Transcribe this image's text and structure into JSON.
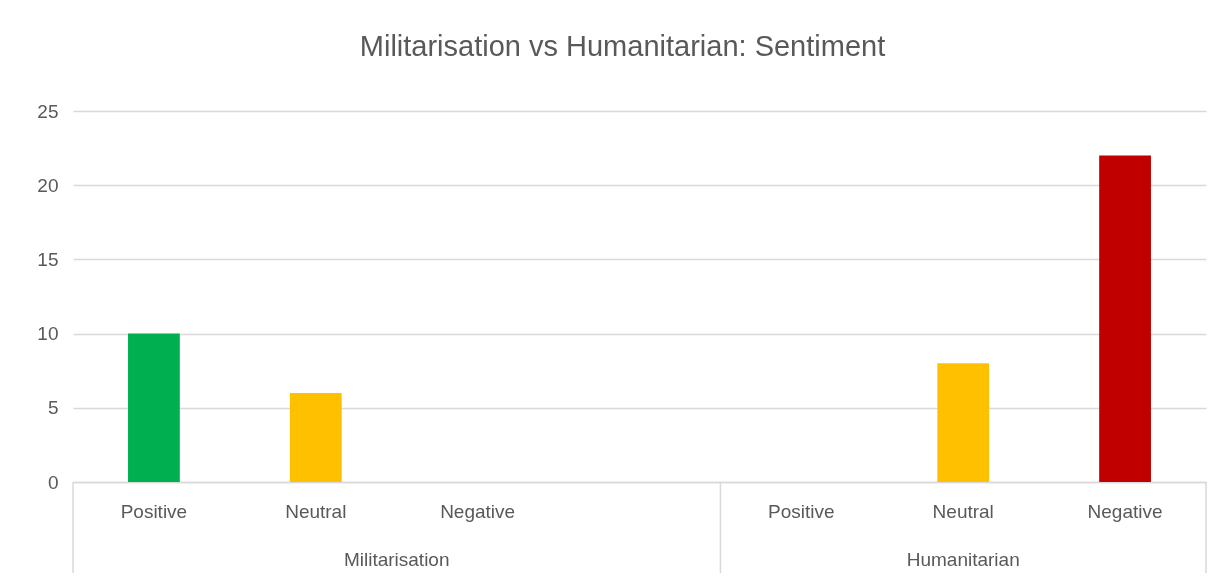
{
  "chart_data": {
    "type": "bar",
    "title": "Militarisation vs Humanitarian:  Sentiment",
    "categories": [
      "Positive",
      "Neutral",
      "Negative",
      null,
      "Positive",
      "Neutral",
      "Negative"
    ],
    "values": [
      10,
      6,
      0,
      null,
      0,
      8,
      22
    ],
    "colors": [
      "#00b050",
      "#ffc000",
      "#c00000",
      null,
      "#00b050",
      "#ffc000",
      "#c00000"
    ],
    "ylim": [
      0,
      25
    ],
    "yticks": [
      0,
      5,
      10,
      15,
      20,
      25
    ],
    "grid": "y",
    "annotations": [
      "Militarisation",
      "Humanitarian"
    ]
  }
}
